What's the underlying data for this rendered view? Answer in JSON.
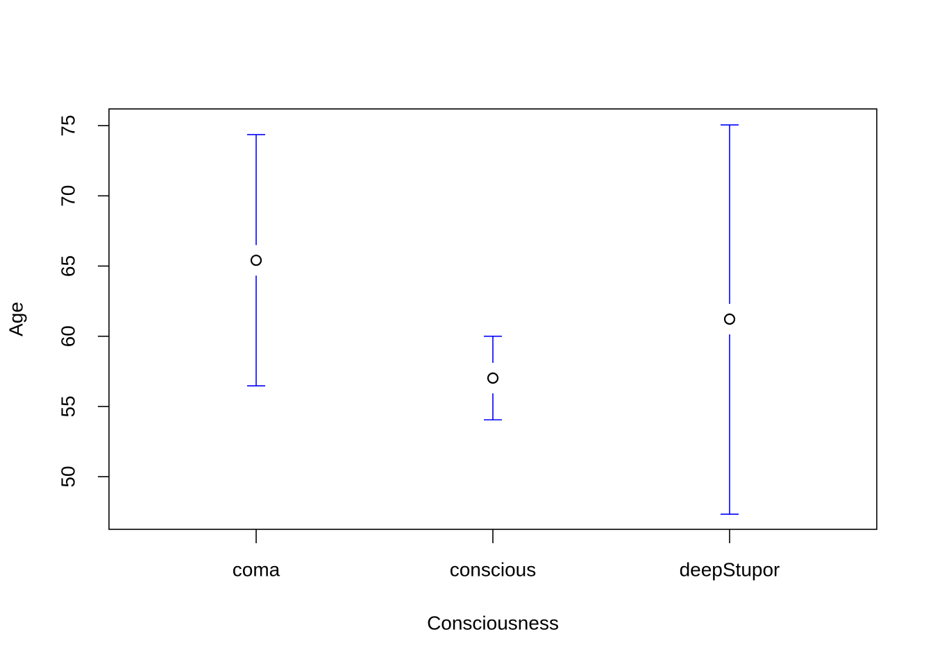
{
  "chart_data": {
    "type": "errorbar",
    "x_label": "Consciousness",
    "y_label": "Age",
    "categories": [
      "coma",
      "conscious",
      "deepStupor"
    ],
    "series": [
      {
        "values": [
          65.41,
          57.02,
          61.22
        ],
        "lower": [
          56.47,
          54.05,
          47.33
        ],
        "upper": [
          74.36,
          60.0,
          75.05
        ]
      }
    ],
    "color": "#0000ff",
    "marker_color": "#000000",
    "ylim": [
      46.25,
      76.19
    ],
    "yticks": [
      50,
      55,
      60,
      65,
      70,
      75
    ],
    "grid": false
  }
}
